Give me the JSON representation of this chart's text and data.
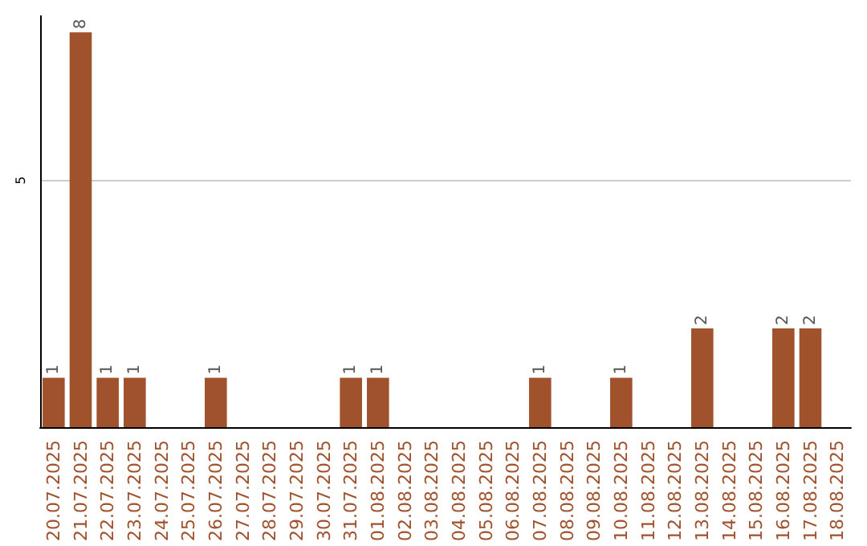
{
  "chart_data": {
    "type": "bar",
    "categories": [
      "20.07.2025",
      "21.07.2025",
      "22.07.2025",
      "23.07.2025",
      "24.07.2025",
      "25.07.2025",
      "26.07.2025",
      "27.07.2025",
      "28.07.2025",
      "29.07.2025",
      "30.07.2025",
      "31.07.2025",
      "01.08.2025",
      "02.08.2025",
      "03.08.2025",
      "04.08.2025",
      "05.08.2025",
      "06.08.2025",
      "07.08.2025",
      "08.08.2025",
      "09.08.2025",
      "10.08.2025",
      "11.08.2025",
      "12.08.2025",
      "13.08.2025",
      "14.08.2025",
      "15.08.2025",
      "16.08.2025",
      "17.08.2025",
      "18.08.2025"
    ],
    "values": [
      1,
      8,
      1,
      1,
      0,
      0,
      1,
      0,
      0,
      0,
      0,
      1,
      1,
      0,
      0,
      0,
      0,
      0,
      1,
      0,
      0,
      1,
      0,
      0,
      2,
      0,
      0,
      2,
      2,
      0
    ],
    "value_labels": [
      "1",
      "8",
      "1",
      "1",
      null,
      null,
      "1",
      null,
      null,
      null,
      null,
      "1",
      "1",
      null,
      null,
      null,
      null,
      null,
      "1",
      null,
      null,
      "1",
      null,
      null,
      "2",
      null,
      null,
      "2",
      "2",
      null
    ],
    "color": "#a0522d",
    "ylim": [
      0,
      8.33
    ],
    "yticks": [
      5
    ],
    "grid": "y"
  }
}
